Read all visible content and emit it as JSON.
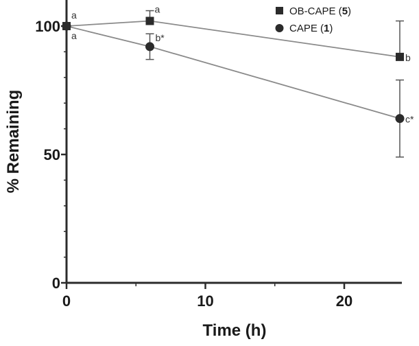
{
  "chart_data": {
    "type": "line",
    "xlabel": "Time (h)",
    "ylabel": "% Remaining",
    "xlim": [
      0,
      24
    ],
    "ylim": [
      0,
      100
    ],
    "xticks": [
      0,
      10,
      20
    ],
    "yticks": [
      0,
      50,
      100
    ],
    "grid": false,
    "legend_position": "top-right",
    "series": [
      {
        "name": "OB-CAPE (5)",
        "name_prefix": "OB-CAPE (",
        "name_number": "5",
        "name_suffix": ")",
        "marker": "square",
        "color": "#2b2b2b",
        "x": [
          0,
          6,
          24
        ],
        "y": [
          100,
          102,
          88
        ],
        "error": [
          0,
          4,
          14
        ],
        "labels": [
          "a",
          "a",
          "b"
        ]
      },
      {
        "name": "CAPE (1)",
        "name_prefix": "CAPE (",
        "name_number": "1",
        "name_suffix": ")",
        "marker": "circle",
        "color": "#2b2b2b",
        "x": [
          0,
          6,
          24
        ],
        "y": [
          100,
          92,
          64
        ],
        "error": [
          0,
          5,
          15
        ],
        "labels": [
          "a",
          "b*",
          "c*"
        ]
      }
    ]
  }
}
